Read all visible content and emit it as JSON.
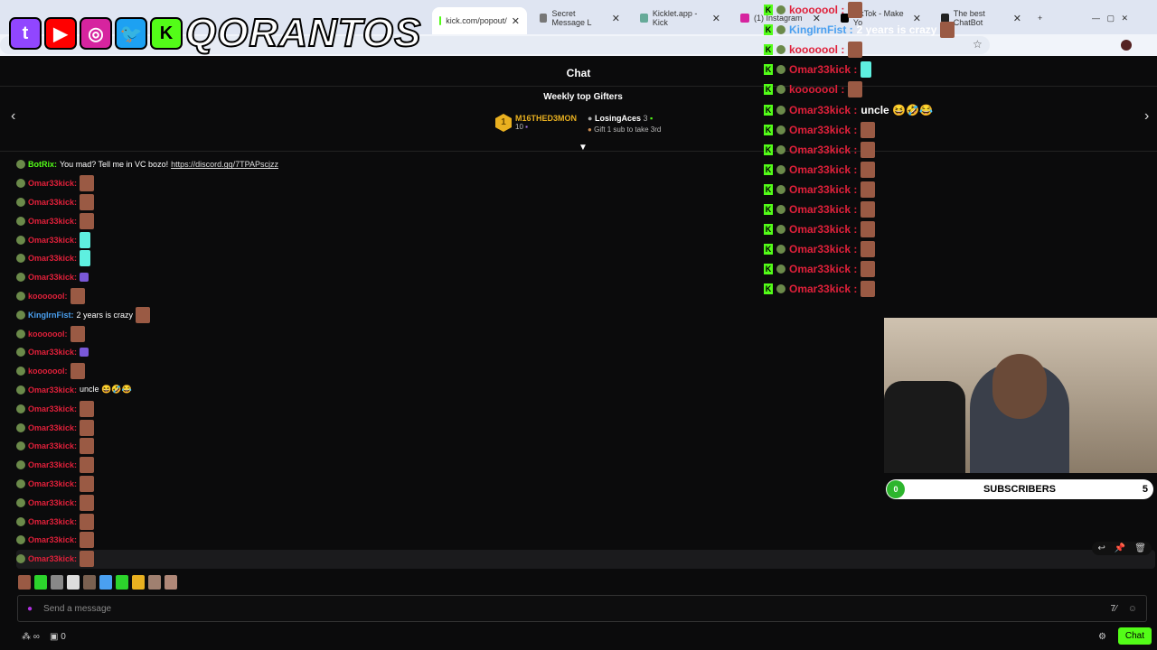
{
  "browser": {
    "tabs": [
      {
        "title": "kick.com/popout/",
        "active": true,
        "color": "#53fc18"
      },
      {
        "title": "Secret Message L",
        "color": "#777"
      },
      {
        "title": "Kicklet.app - Kick",
        "color": "#6a9"
      },
      {
        "title": "(1) Instagram",
        "color": "#d6249f"
      },
      {
        "title": "TikTok - Make Yo",
        "color": "#000"
      },
      {
        "title": "The best ChatBot",
        "color": "#222"
      }
    ],
    "new_tab": "+"
  },
  "logo": {
    "brand": "QORANTOS",
    "icons": [
      "twitch",
      "youtube",
      "instagram",
      "twitter",
      "kick"
    ]
  },
  "chat_header": {
    "title": "Chat"
  },
  "gifters": {
    "title": "Weekly top Gifters",
    "first": {
      "rank": "1",
      "name": "M16THED3MON",
      "count": "10"
    },
    "second": {
      "rank": "2",
      "name": "LosingAces",
      "count": "3"
    },
    "third": {
      "rank": "3",
      "text": "Gift 1 sub to take 3rd"
    }
  },
  "messages": [
    {
      "user": "BotRix",
      "color": "#53fc18",
      "text": "You mad? Tell me in VC bozo! ",
      "link": "https://discord.gg/7TPAPscjzz"
    },
    {
      "user": "Omar33kick",
      "color": "#e0203a",
      "emote": "face"
    },
    {
      "user": "Omar33kick",
      "color": "#e0203a",
      "emote": "face"
    },
    {
      "user": "Omar33kick",
      "color": "#e0203a",
      "emote": "face"
    },
    {
      "user": "Omar33kick",
      "color": "#e0203a",
      "emote": "cyan"
    },
    {
      "user": "Omar33kick",
      "color": "#e0203a",
      "emote": "cyan"
    },
    {
      "user": "Omar33kick",
      "color": "#e0203a",
      "emote": "purple"
    },
    {
      "user": "kooooool",
      "color": "#e0203a",
      "emote": "face"
    },
    {
      "user": "KingIrnFist",
      "color": "#4aa0f0",
      "text": "2 years is crazy",
      "emote": "face"
    },
    {
      "user": "kooooool",
      "color": "#e0203a",
      "emote": "face"
    },
    {
      "user": "Omar33kick",
      "color": "#e0203a",
      "emote": "purple"
    },
    {
      "user": "kooooool",
      "color": "#e0203a",
      "emote": "face"
    },
    {
      "user": "Omar33kick",
      "color": "#e0203a",
      "text": "uncle 😆🤣😂"
    },
    {
      "user": "Omar33kick",
      "color": "#e0203a",
      "emote": "face"
    },
    {
      "user": "Omar33kick",
      "color": "#e0203a",
      "emote": "face"
    },
    {
      "user": "Omar33kick",
      "color": "#e0203a",
      "emote": "face"
    },
    {
      "user": "Omar33kick",
      "color": "#e0203a",
      "emote": "face"
    },
    {
      "user": "Omar33kick",
      "color": "#e0203a",
      "emote": "face"
    },
    {
      "user": "Omar33kick",
      "color": "#e0203a",
      "emote": "face"
    },
    {
      "user": "Omar33kick",
      "color": "#e0203a",
      "emote": "face"
    },
    {
      "user": "Omar33kick",
      "color": "#e0203a",
      "emote": "face"
    },
    {
      "user": "Omar33kick",
      "color": "#e0203a",
      "emote": "face"
    }
  ],
  "overlay": [
    {
      "user": "kooooool",
      "color": "#e0203a",
      "emote": "face"
    },
    {
      "user": "KingIrnFist",
      "color": "#4aa0f0",
      "text": "2 years is crazy",
      "emote": "face"
    },
    {
      "user": "kooooool",
      "color": "#e0203a",
      "emote": "face"
    },
    {
      "user": "Omar33kick",
      "color": "#e0203a",
      "emote": "cyan"
    },
    {
      "user": "kooooool",
      "color": "#e0203a",
      "emote": "face"
    },
    {
      "user": "Omar33kick",
      "color": "#e0203a",
      "text": "uncle 😆🤣😂"
    },
    {
      "user": "Omar33kick",
      "color": "#e0203a",
      "emote": "face"
    },
    {
      "user": "Omar33kick",
      "color": "#e0203a",
      "emote": "face"
    },
    {
      "user": "Omar33kick",
      "color": "#e0203a",
      "emote": "face"
    },
    {
      "user": "Omar33kick",
      "color": "#e0203a",
      "emote": "face"
    },
    {
      "user": "Omar33kick",
      "color": "#e0203a",
      "emote": "face"
    },
    {
      "user": "Omar33kick",
      "color": "#e0203a",
      "emote": "face"
    },
    {
      "user": "Omar33kick",
      "color": "#e0203a",
      "emote": "face"
    },
    {
      "user": "Omar33kick",
      "color": "#e0203a",
      "emote": "face"
    },
    {
      "user": "Omar33kick",
      "color": "#e0203a",
      "emote": "face"
    }
  ],
  "subs": {
    "start": "0",
    "label": "SUBSCRIBERS",
    "goal": "5",
    "progress": 0
  },
  "input": {
    "placeholder": "Send a message"
  },
  "footer": {
    "points": "∞",
    "count": "0",
    "chat_button": "Chat"
  },
  "quick_emotes": [
    "#9a5a44",
    "#2cd42c",
    "#888",
    "#ddd",
    "#7a6050",
    "#4aa0f0",
    "#2cd42c",
    "#e8b020",
    "#a08070",
    "#b08878"
  ]
}
